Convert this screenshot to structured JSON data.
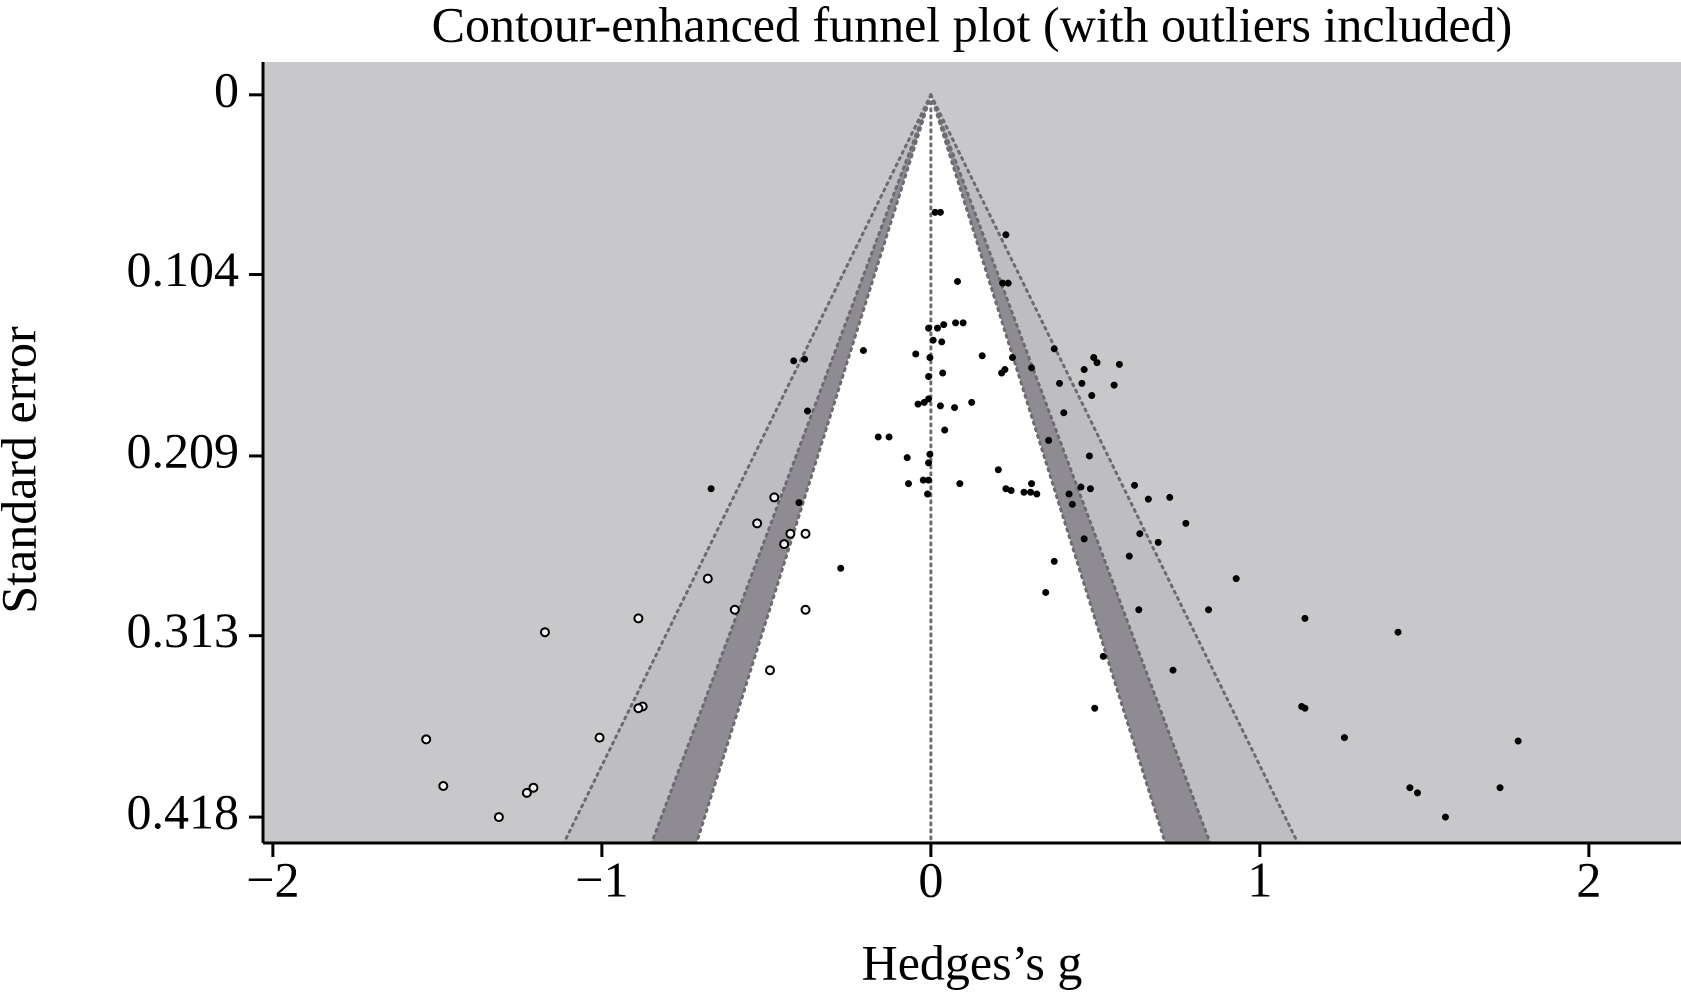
{
  "chart_data": {
    "type": "funnel",
    "title": "Contour-enhanced funnel plot (with outliers included)",
    "x_label": "Hedges’s g",
    "y_label": "Standard error",
    "xlim": [
      -2.03,
      2.28
    ],
    "ylim": [
      -0.019,
      0.433
    ],
    "y_inverted": true,
    "xticks": [
      {
        "value": -2,
        "label": "−2"
      },
      {
        "value": -1,
        "label": "−1"
      },
      0,
      1,
      2
    ],
    "yticks": [
      0,
      0.104,
      0.209,
      0.313,
      0.418
    ],
    "background": "#c8c8cb",
    "contour_z": [
      2.576,
      1.96,
      1.645
    ],
    "contour_colors": [
      "#bebdc1",
      "#8f8b92",
      "#ffffff"
    ],
    "series": [
      {
        "marker": "filled",
        "color": "#000000",
        "x": [
          0.013,
          0.029,
          0.228,
          0.081,
          0.218,
          0.235,
          -0.007,
          0.02,
          0.039,
          0.075,
          0.098,
          0.007,
          0.033,
          -0.046,
          -0.003,
          -0.205,
          0.156,
          0.248,
          0.375,
          0.495,
          0.505,
          0.573,
          -0.417,
          -0.384,
          0.036,
          -0.007,
          0.306,
          0.215,
          0.225,
          0.466,
          0.391,
          0.459,
          0.557,
          0.489,
          -0.007,
          -0.039,
          -0.02,
          0.029,
          0.072,
          0.124,
          -0.375,
          0.404,
          0.042,
          -0.16,
          -0.127,
          0.358,
          0.482,
          -0.072,
          -0.003,
          0.205,
          -0.023,
          -0.007,
          -0.068,
          0.088,
          0.306,
          0.228,
          0.244,
          0.283,
          0.303,
          0.322,
          0.42,
          0.456,
          0.485,
          0.619,
          0.661,
          0.726,
          0.43,
          -0.01,
          -0.668,
          -0.401,
          0.775,
          0.635,
          0.466,
          0.691,
          0.603,
          0.375,
          -0.274,
          0.928,
          0.349,
          0.632,
          0.844,
          1.137,
          1.42,
          0.524,
          0.736,
          0.498,
          1.127,
          1.137,
          1.257,
          1.785,
          1.456,
          1.479,
          1.73,
          1.564,
          -0.007
        ],
        "values": [
          0.068,
          0.068,
          0.081,
          0.108,
          0.109,
          0.109,
          0.135,
          0.135,
          0.133,
          0.132,
          0.132,
          0.142,
          0.143,
          0.15,
          0.152,
          0.148,
          0.151,
          0.152,
          0.147,
          0.152,
          0.155,
          0.156,
          0.154,
          0.153,
          0.161,
          0.163,
          0.158,
          0.161,
          0.159,
          0.159,
          0.167,
          0.167,
          0.168,
          0.174,
          0.176,
          0.179,
          0.178,
          0.18,
          0.181,
          0.178,
          0.183,
          0.184,
          0.194,
          0.198,
          0.198,
          0.2,
          0.209,
          0.21,
          0.208,
          0.217,
          0.223,
          0.223,
          0.225,
          0.225,
          0.225,
          0.228,
          0.229,
          0.23,
          0.23,
          0.231,
          0.231,
          0.227,
          0.228,
          0.226,
          0.234,
          0.233,
          0.237,
          0.231,
          0.228,
          0.236,
          0.248,
          0.254,
          0.257,
          0.259,
          0.267,
          0.27,
          0.274,
          0.28,
          0.288,
          0.298,
          0.298,
          0.303,
          0.311,
          0.325,
          0.333,
          0.355,
          0.354,
          0.355,
          0.372,
          0.374,
          0.401,
          0.404,
          0.401,
          0.418,
          0.213
        ]
      },
      {
        "marker": "open",
        "color": "#000000",
        "x": [
          -0.476,
          -0.528,
          -0.427,
          -0.381,
          -0.446,
          -0.678,
          -0.596,
          -0.889,
          -0.381,
          -1.173,
          -0.489,
          -0.876,
          -0.889,
          -1.007,
          -1.534,
          -1.482,
          -1.228,
          -1.208,
          -1.313
        ],
        "values": [
          0.233,
          0.248,
          0.254,
          0.254,
          0.26,
          0.28,
          0.298,
          0.303,
          0.298,
          0.311,
          0.333,
          0.354,
          0.355,
          0.372,
          0.373,
          0.4,
          0.404,
          0.401,
          0.418
        ]
      }
    ]
  }
}
